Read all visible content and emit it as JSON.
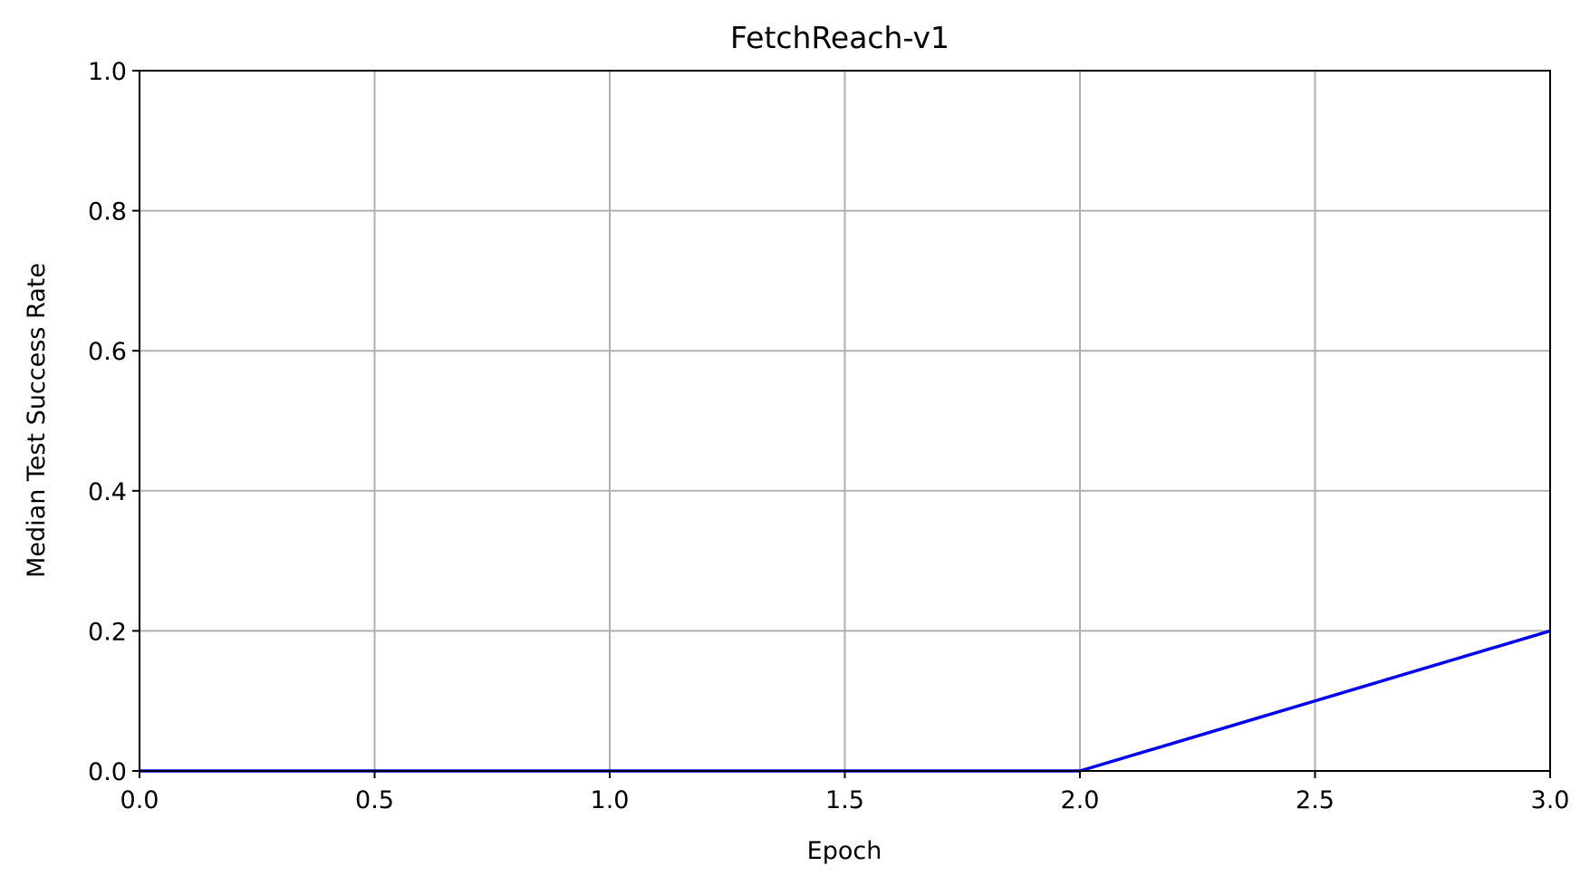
{
  "chart_data": {
    "type": "line",
    "title": "FetchReach-v1",
    "xlabel": "Epoch",
    "ylabel": "Median Test Success Rate",
    "xlim": [
      0.0,
      3.0
    ],
    "ylim": [
      0.0,
      1.0
    ],
    "xticks": [
      "0.0",
      "0.5",
      "1.0",
      "1.5",
      "2.0",
      "2.5",
      "3.0"
    ],
    "yticks": [
      "0.0",
      "0.2",
      "0.4",
      "0.6",
      "0.8",
      "1.0"
    ],
    "grid": true,
    "series": [
      {
        "x": [
          0,
          1,
          2,
          3
        ],
        "y": [
          0.0,
          0.0,
          0.0,
          0.2
        ],
        "color": "#0000ee"
      }
    ]
  }
}
